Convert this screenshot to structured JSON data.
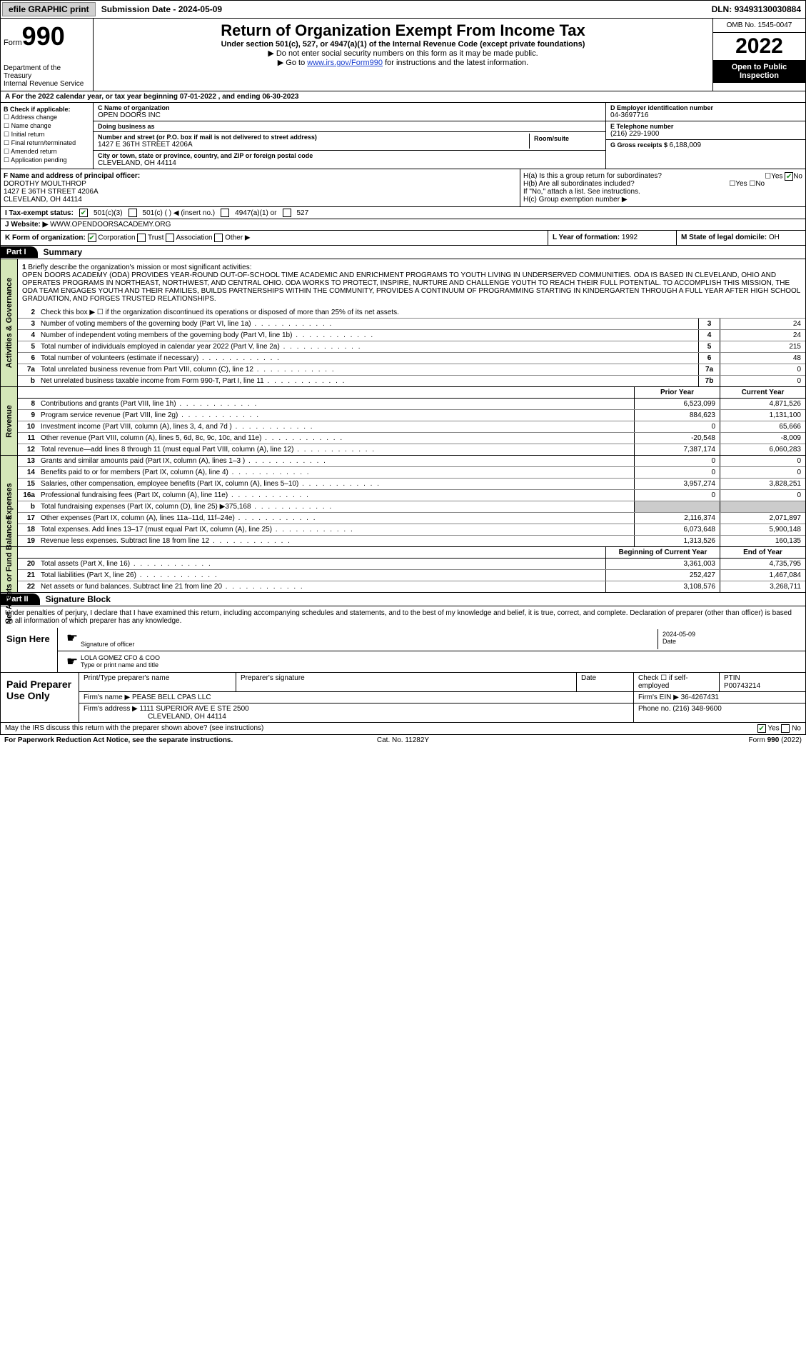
{
  "topbar": {
    "efile": "efile GRAPHIC print",
    "submission_label": "Submission Date - ",
    "submission_date": "2024-05-09",
    "dln_label": "DLN: ",
    "dln": "93493130030884"
  },
  "header": {
    "form_label": "Form",
    "form_number": "990",
    "dept": "Department of the Treasury",
    "irs": "Internal Revenue Service",
    "title": "Return of Organization Exempt From Income Tax",
    "subtitle": "Under section 501(c), 527, or 4947(a)(1) of the Internal Revenue Code (except private foundations)",
    "note1": "▶ Do not enter social security numbers on this form as it may be made public.",
    "note2_pre": "▶ Go to ",
    "note2_link": "www.irs.gov/Form990",
    "note2_post": " for instructions and the latest information.",
    "omb": "OMB No. 1545-0047",
    "year": "2022",
    "open": "Open to Public Inspection"
  },
  "line_a": "A For the 2022 calendar year, or tax year beginning 07-01-2022  , and ending 06-30-2023",
  "section_b": {
    "label": "B Check if applicable:",
    "items": [
      "Address change",
      "Name change",
      "Initial return",
      "Final return/terminated",
      "Amended return",
      "Application pending"
    ]
  },
  "section_c": {
    "name_label": "C Name of organization",
    "name": "OPEN DOORS INC",
    "dba_label": "Doing business as",
    "dba": "",
    "addr_label": "Number and street (or P.O. box if mail is not delivered to street address)",
    "addr": "1427 E 36TH STREET 4206A",
    "room_label": "Room/suite",
    "room": "",
    "city_label": "City or town, state or province, country, and ZIP or foreign postal code",
    "city": "CLEVELAND, OH  44114"
  },
  "section_d": {
    "label": "D Employer identification number",
    "ein": "04-3697716",
    "e_label": "E Telephone number",
    "phone": "(216) 229-1900",
    "g_label": "G Gross receipts $ ",
    "gross": "6,188,009"
  },
  "section_f": {
    "label": "F Name and address of principal officer:",
    "name": "DOROTHY MOULTHROP",
    "addr1": "1427 E 36TH STREET 4206A",
    "addr2": "CLEVELAND, OH  44114"
  },
  "section_h": {
    "ha_label": "H(a)  Is this a group return for subordinates?",
    "hb_label": "H(b)  Are all subordinates included?",
    "hb_note": "If \"No,\" attach a list. See instructions.",
    "hc_label": "H(c)  Group exemption number ▶",
    "yes": "Yes",
    "no": "No"
  },
  "row_i": {
    "label": "I  Tax-exempt status:",
    "opt1": "501(c)(3)",
    "opt2": "501(c) (  ) ◀ (insert no.)",
    "opt3": "4947(a)(1) or",
    "opt4": "527"
  },
  "row_j": {
    "label": "J  Website: ▶",
    "value": "WWW.OPENDOORSACADEMY.ORG"
  },
  "row_k": {
    "label": "K Form of organization:",
    "corp": "Corporation",
    "trust": "Trust",
    "assoc": "Association",
    "other": "Other ▶"
  },
  "row_l": {
    "label": "L Year of formation: ",
    "value": "1992"
  },
  "row_m": {
    "label": "M State of legal domicile: ",
    "value": "OH"
  },
  "part1": {
    "hdr": "Part I",
    "title": "Summary",
    "vlabel1": "Activities & Governance",
    "vlabel2": "Revenue",
    "vlabel3": "Expenses",
    "vlabel4": "Net Assets or Fund Balances",
    "line1_label": "Briefly describe the organization's mission or most significant activities:",
    "mission": "OPEN DOORS ACADEMY (ODA) PROVIDES YEAR-ROUND OUT-OF-SCHOOL TIME ACADEMIC AND ENRICHMENT PROGRAMS TO YOUTH LIVING IN UNDERSERVED COMMUNITIES. ODA IS BASED IN CLEVELAND, OHIO AND OPERATES PROGRAMS IN NORTHEAST, NORTHWEST, AND CENTRAL OHIO. ODA WORKS TO PROTECT, INSPIRE, NURTURE AND CHALLENGE YOUTH TO REACH THEIR FULL POTENTIAL. TO ACCOMPLISH THIS MISSION, THE ODA TEAM ENGAGES YOUTH AND THEIR FAMILIES, BUILDS PARTNERSHIPS WITHIN THE COMMUNITY, PROVIDES A CONTINUUM OF PROGRAMMING STARTING IN KINDERGARTEN THROUGH A FULL YEAR AFTER HIGH SCHOOL GRADUATION, AND FORGES TRUSTED RELATIONSHIPS.",
    "line2": "Check this box ▶ ☐ if the organization discontinued its operations or disposed of more than 25% of its net assets.",
    "gov_lines": [
      {
        "n": "3",
        "t": "Number of voting members of the governing body (Part VI, line 1a)",
        "b": "3",
        "v": "24"
      },
      {
        "n": "4",
        "t": "Number of independent voting members of the governing body (Part VI, line 1b)",
        "b": "4",
        "v": "24"
      },
      {
        "n": "5",
        "t": "Total number of individuals employed in calendar year 2022 (Part V, line 2a)",
        "b": "5",
        "v": "215"
      },
      {
        "n": "6",
        "t": "Total number of volunteers (estimate if necessary)",
        "b": "6",
        "v": "48"
      },
      {
        "n": "7a",
        "t": "Total unrelated business revenue from Part VIII, column (C), line 12",
        "b": "7a",
        "v": "0"
      },
      {
        "n": "b",
        "t": "Net unrelated business taxable income from Form 990-T, Part I, line 11",
        "b": "7b",
        "v": "0"
      }
    ],
    "prior_hdr": "Prior Year",
    "curr_hdr": "Current Year",
    "rev_lines": [
      {
        "n": "8",
        "t": "Contributions and grants (Part VIII, line 1h)",
        "p": "6,523,099",
        "c": "4,871,526"
      },
      {
        "n": "9",
        "t": "Program service revenue (Part VIII, line 2g)",
        "p": "884,623",
        "c": "1,131,100"
      },
      {
        "n": "10",
        "t": "Investment income (Part VIII, column (A), lines 3, 4, and 7d )",
        "p": "0",
        "c": "65,666"
      },
      {
        "n": "11",
        "t": "Other revenue (Part VIII, column (A), lines 5, 6d, 8c, 9c, 10c, and 11e)",
        "p": "-20,548",
        "c": "-8,009"
      },
      {
        "n": "12",
        "t": "Total revenue—add lines 8 through 11 (must equal Part VIII, column (A), line 12)",
        "p": "7,387,174",
        "c": "6,060,283"
      }
    ],
    "exp_lines": [
      {
        "n": "13",
        "t": "Grants and similar amounts paid (Part IX, column (A), lines 1–3 )",
        "p": "0",
        "c": "0"
      },
      {
        "n": "14",
        "t": "Benefits paid to or for members (Part IX, column (A), line 4)",
        "p": "0",
        "c": "0"
      },
      {
        "n": "15",
        "t": "Salaries, other compensation, employee benefits (Part IX, column (A), lines 5–10)",
        "p": "3,957,274",
        "c": "3,828,251"
      },
      {
        "n": "16a",
        "t": "Professional fundraising fees (Part IX, column (A), line 11e)",
        "p": "0",
        "c": "0"
      },
      {
        "n": "b",
        "t": "Total fundraising expenses (Part IX, column (D), line 25) ▶375,168",
        "p": "",
        "c": "",
        "shade": true
      },
      {
        "n": "17",
        "t": "Other expenses (Part IX, column (A), lines 11a–11d, 11f–24e)",
        "p": "2,116,374",
        "c": "2,071,897"
      },
      {
        "n": "18",
        "t": "Total expenses. Add lines 13–17 (must equal Part IX, column (A), line 25)",
        "p": "6,073,648",
        "c": "5,900,148"
      },
      {
        "n": "19",
        "t": "Revenue less expenses. Subtract line 18 from line 12",
        "p": "1,313,526",
        "c": "160,135"
      }
    ],
    "begin_hdr": "Beginning of Current Year",
    "end_hdr": "End of Year",
    "net_lines": [
      {
        "n": "20",
        "t": "Total assets (Part X, line 16)",
        "p": "3,361,003",
        "c": "4,735,795"
      },
      {
        "n": "21",
        "t": "Total liabilities (Part X, line 26)",
        "p": "252,427",
        "c": "1,467,084"
      },
      {
        "n": "22",
        "t": "Net assets or fund balances. Subtract line 21 from line 20",
        "p": "3,108,576",
        "c": "3,268,711"
      }
    ]
  },
  "part2": {
    "hdr": "Part II",
    "title": "Signature Block",
    "penalty": "Under penalties of perjury, I declare that I have examined this return, including accompanying schedules and statements, and to the best of my knowledge and belief, it is true, correct, and complete. Declaration of preparer (other than officer) is based on all information of which preparer has any knowledge.",
    "sign_here": "Sign Here",
    "sig_of_officer": "Signature of officer",
    "sig_date": "2024-05-09",
    "date_label": "Date",
    "officer_name": "LOLA GOMEZ  CFO & COO",
    "type_name": "Type or print name and title",
    "paid_prep": "Paid Preparer Use Only",
    "prep_name_label": "Print/Type preparer's name",
    "prep_sig_label": "Preparer's signature",
    "prep_date_label": "Date",
    "self_emp": "Check ☐ if self-employed",
    "ptin_label": "PTIN",
    "ptin": "P00743214",
    "firm_name_label": "Firm's name    ▶ ",
    "firm_name": "PEASE BELL CPAS LLC",
    "firm_ein_label": "Firm's EIN ▶ ",
    "firm_ein": "36-4267431",
    "firm_addr_label": "Firm's address ▶ ",
    "firm_addr": "1111 SUPERIOR AVE E STE 2500",
    "firm_city": "CLEVELAND, OH  44114",
    "firm_phone_label": "Phone no. ",
    "firm_phone": "(216) 348-9600",
    "discuss": "May the IRS discuss this return with the preparer shown above? (see instructions)",
    "paperwork": "For Paperwork Reduction Act Notice, see the separate instructions.",
    "cat": "Cat. No. 11282Y",
    "form_foot": "Form 990 (2022)"
  }
}
